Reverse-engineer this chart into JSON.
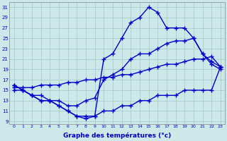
{
  "title": "Graphe des températures (°c)",
  "xlabel_hours": [
    0,
    1,
    2,
    3,
    4,
    5,
    6,
    7,
    8,
    9,
    10,
    11,
    12,
    13,
    14,
    15,
    16,
    17,
    18,
    19,
    20,
    21,
    22,
    23
  ],
  "yticks": [
    9,
    11,
    13,
    15,
    17,
    19,
    21,
    23,
    25,
    27,
    29,
    31
  ],
  "ylim": [
    8.5,
    32
  ],
  "xlim": [
    -0.5,
    23.5
  ],
  "background_color": "#cce8e8",
  "line_color": "#0000cc",
  "lines": [
    {
      "x": [
        0,
        1,
        2,
        3,
        4,
        5,
        6,
        7,
        8,
        9,
        10,
        11,
        12,
        13,
        14,
        15,
        16,
        17,
        18,
        19,
        20,
        21,
        22,
        23
      ],
      "y": [
        15.5,
        15.5,
        15.5,
        16,
        16,
        16,
        16.5,
        16.5,
        17,
        17,
        17.5,
        17.5,
        18,
        18,
        18.5,
        19,
        19.5,
        20,
        20,
        20.5,
        21,
        21,
        21.5,
        19.5
      ],
      "marker": "+",
      "markersize": 4,
      "linewidth": 1.0
    },
    {
      "x": [
        0,
        1,
        2,
        3,
        4,
        5,
        6,
        7,
        8,
        9,
        10,
        11,
        12,
        13,
        14,
        15,
        16,
        17,
        18,
        19,
        20,
        21,
        22,
        23
      ],
      "y": [
        15,
        15,
        14,
        13,
        13,
        12,
        11,
        10,
        10,
        10,
        11,
        11,
        12,
        12,
        13,
        13,
        14,
        14,
        14,
        15,
        15,
        15,
        15,
        19.5
      ],
      "marker": "+",
      "markersize": 4,
      "linewidth": 1.0
    },
    {
      "x": [
        0,
        1,
        2,
        3,
        4,
        5,
        6,
        7,
        8,
        9,
        10,
        11,
        12,
        13,
        14,
        15,
        16,
        17,
        18,
        19,
        20,
        21,
        22,
        23
      ],
      "y": [
        16,
        15,
        14,
        13,
        13,
        12,
        11,
        10,
        9.5,
        10,
        21,
        22,
        25,
        28,
        29,
        31,
        30,
        27,
        27,
        27,
        25,
        22,
        20,
        19
      ],
      "marker": "+",
      "markersize": 4,
      "linewidth": 1.0
    },
    {
      "x": [
        0,
        1,
        2,
        3,
        4,
        5,
        6,
        7,
        8,
        9,
        10,
        11,
        12,
        13,
        14,
        15,
        16,
        17,
        18,
        19,
        20,
        21,
        22,
        23
      ],
      "y": [
        16,
        15,
        14,
        14,
        13,
        13,
        12,
        12,
        13,
        13.5,
        17,
        18,
        19,
        21,
        22,
        22,
        23,
        24,
        24.5,
        24.5,
        25,
        22,
        20.5,
        19.5
      ],
      "marker": "+",
      "markersize": 4,
      "linewidth": 1.0
    }
  ]
}
